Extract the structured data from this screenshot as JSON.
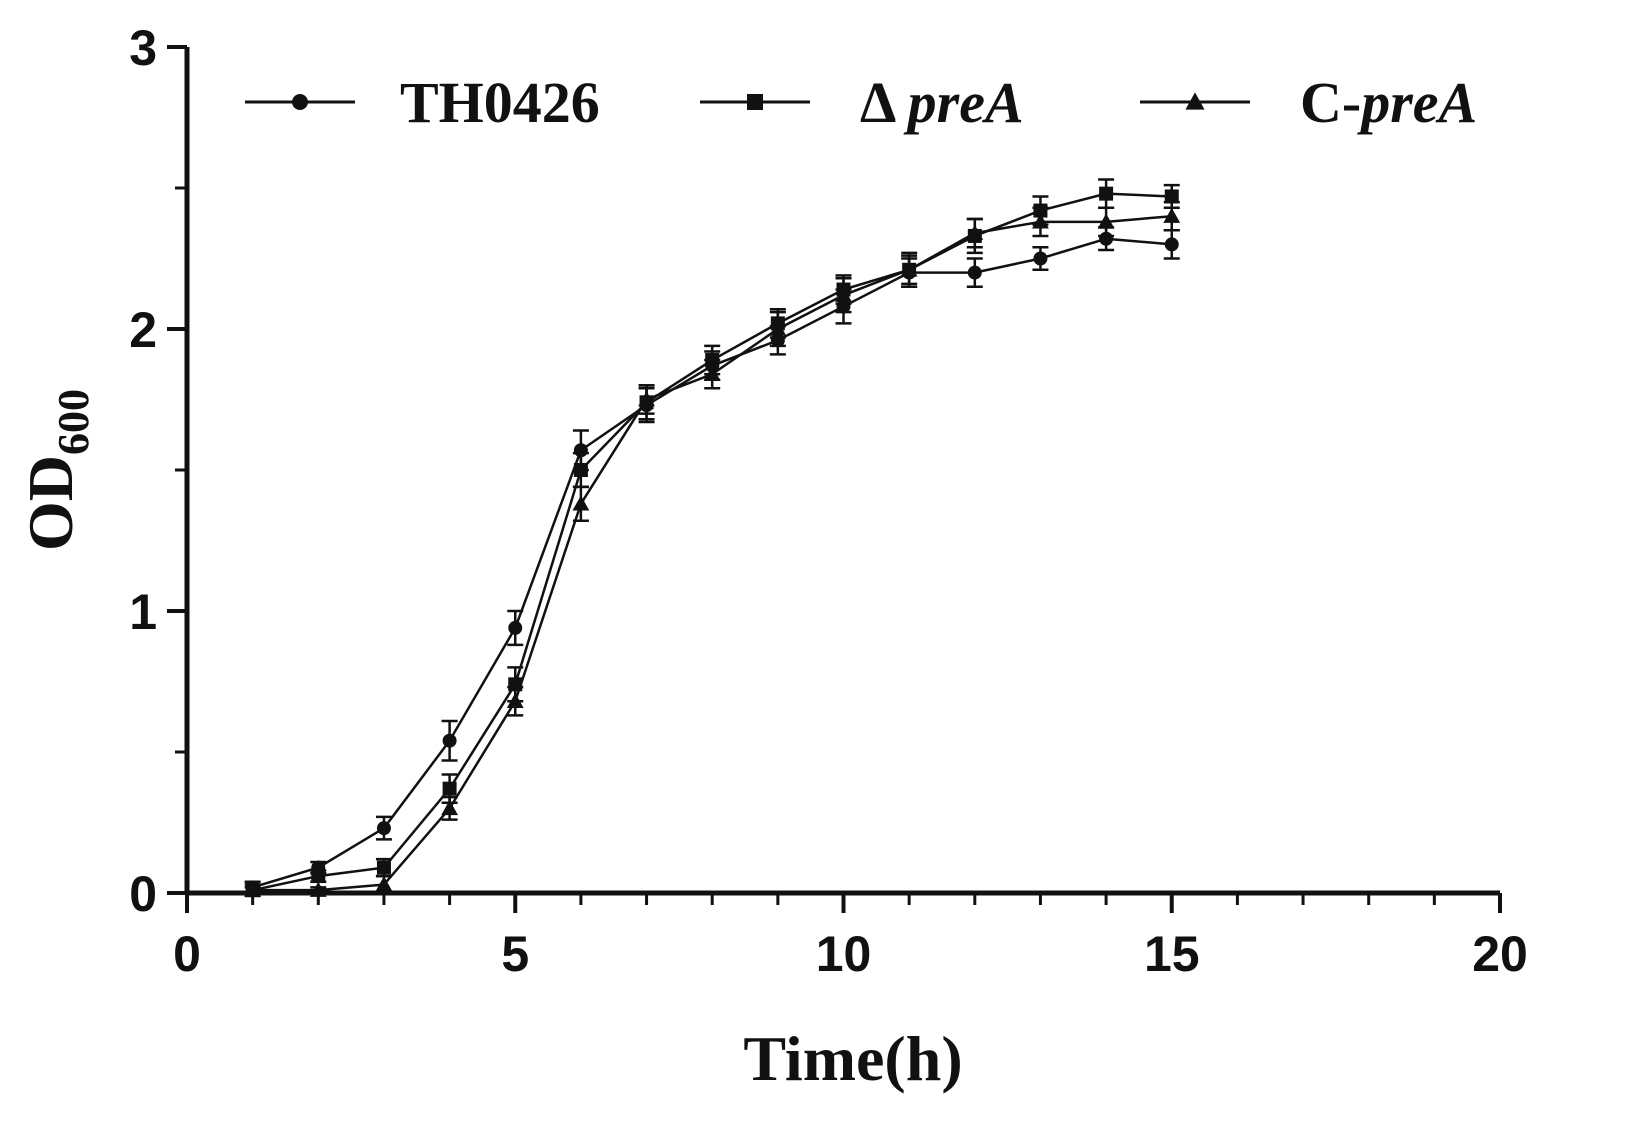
{
  "chart_data": {
    "type": "line",
    "xlabel": "Time(h)",
    "ylabel": "OD",
    "ylabel_subscript": "600",
    "xlim": [
      0,
      20
    ],
    "ylim": [
      0,
      3
    ],
    "x_ticks": [
      "0",
      "5",
      "10",
      "15",
      "20"
    ],
    "y_ticks": [
      "0",
      "1",
      "2",
      "3"
    ],
    "x_minor_step": 1,
    "y_minor_step": 0.5,
    "grid": false,
    "legend_position": "top",
    "legend": [
      {
        "marker": "circle",
        "prefix": "TH0426",
        "italic": ""
      },
      {
        "marker": "square",
        "prefix": "Δ ",
        "italic": "preA"
      },
      {
        "marker": "triangle",
        "prefix": "C-",
        "italic": "preA"
      }
    ],
    "x": [
      1,
      2,
      3,
      4,
      5,
      6,
      7,
      8,
      9,
      10,
      11,
      12,
      13,
      14,
      15
    ],
    "series": [
      {
        "marker": "circle",
        "values": [
          0.02,
          0.09,
          0.23,
          0.54,
          0.94,
          1.57,
          1.73,
          1.87,
          1.96,
          2.08,
          2.2,
          2.2,
          2.25,
          2.32,
          2.3
        ],
        "errors": [
          0.02,
          0.02,
          0.04,
          0.07,
          0.06,
          0.07,
          0.06,
          0.05,
          0.05,
          0.06,
          0.05,
          0.05,
          0.04,
          0.04,
          0.05
        ]
      },
      {
        "marker": "square",
        "values": [
          0.01,
          0.06,
          0.09,
          0.37,
          0.74,
          1.5,
          1.74,
          1.89,
          2.02,
          2.14,
          2.21,
          2.33,
          2.42,
          2.48,
          2.47
        ],
        "errors": [
          0.02,
          0.02,
          0.03,
          0.05,
          0.06,
          0.06,
          0.06,
          0.05,
          0.05,
          0.05,
          0.05,
          0.06,
          0.05,
          0.05,
          0.04
        ]
      },
      {
        "marker": "triangle",
        "values": [
          0.01,
          0.01,
          0.03,
          0.3,
          0.68,
          1.38,
          1.75,
          1.84,
          2.0,
          2.12,
          2.21,
          2.34,
          2.38,
          2.38,
          2.4
        ],
        "errors": [
          0.01,
          0.01,
          0.03,
          0.04,
          0.05,
          0.06,
          0.05,
          0.05,
          0.06,
          0.06,
          0.06,
          0.05,
          0.05,
          0.05,
          0.05
        ]
      }
    ]
  }
}
